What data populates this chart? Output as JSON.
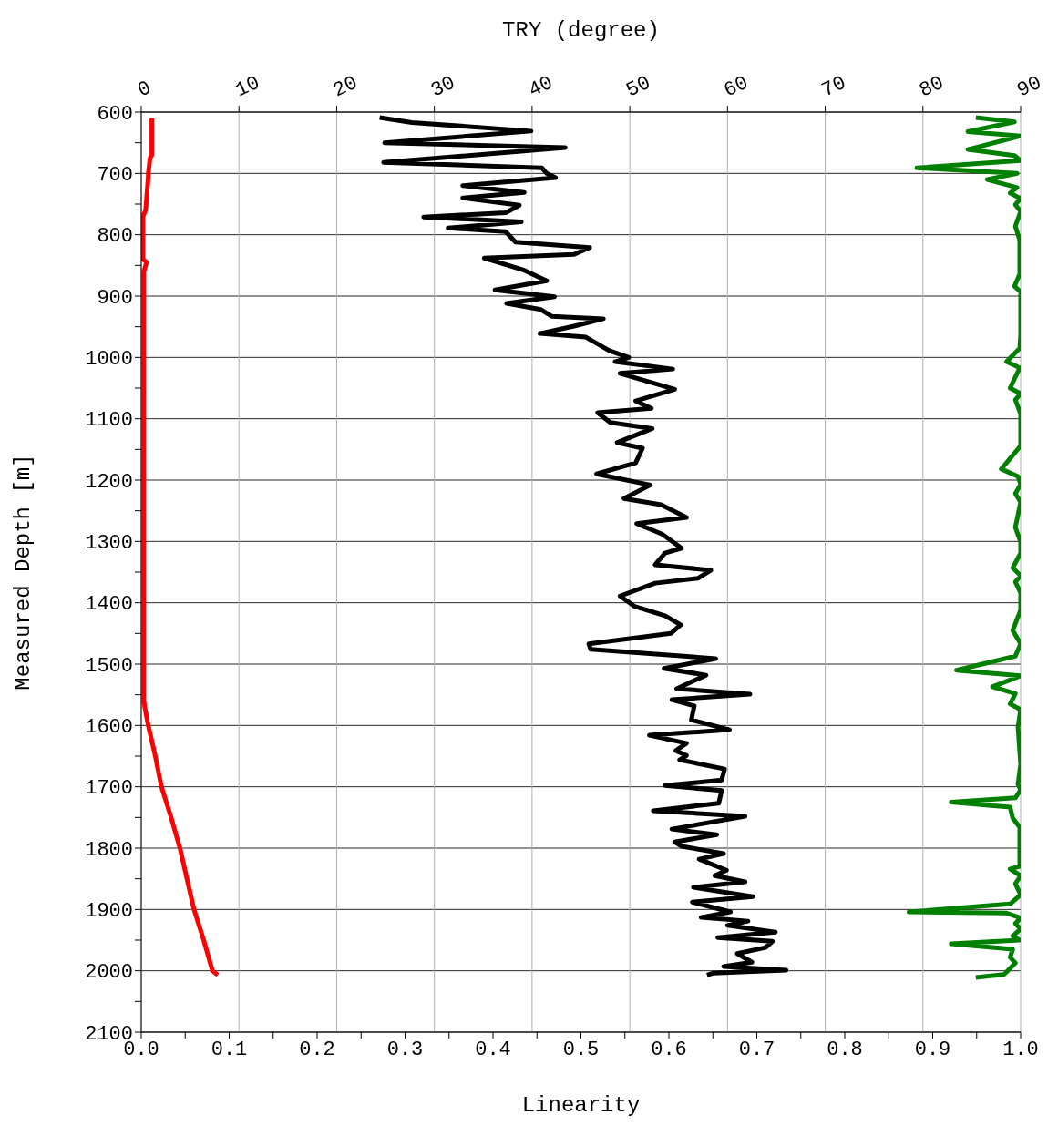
{
  "chart_data": {
    "type": "line",
    "xlabel": "Linearity",
    "x2label": "TRY (degree)",
    "ylabel": "Measured Depth [m]",
    "xlim": [
      0,
      1
    ],
    "xticks": [
      {
        "value": 0,
        "label": "0.0"
      },
      {
        "value": 0.05,
        "label": null
      },
      0.1,
      {
        "value": 0.15,
        "label": null
      },
      0.2,
      {
        "value": 0.25,
        "label": null
      },
      0.3,
      {
        "value": 0.35,
        "label": null
      },
      0.4,
      {
        "value": 0.45,
        "label": null
      },
      0.5,
      {
        "value": 0.55,
        "label": null
      },
      0.6,
      {
        "value": 0.65,
        "label": null
      },
      0.7,
      {
        "value": 0.75,
        "label": null
      },
      0.8,
      {
        "value": 0.85,
        "label": null
      },
      0.9,
      {
        "value": 0.95,
        "label": null
      },
      {
        "value": 1,
        "label": "1.0"
      }
    ],
    "x2lim": [
      0,
      90
    ],
    "x2ticks": [
      0,
      10,
      20,
      30,
      40,
      50,
      60,
      70,
      80,
      90
    ],
    "ylim": [
      2100,
      600
    ],
    "yticks": [
      600,
      {
        "value": 650,
        "label": null
      },
      700,
      {
        "value": 750,
        "label": null
      },
      800,
      {
        "value": 850,
        "label": null
      },
      900,
      {
        "value": 950,
        "label": null
      },
      1000,
      {
        "value": 1050,
        "label": null
      },
      1100,
      {
        "value": 1150,
        "label": null
      },
      1200,
      {
        "value": 1250,
        "label": null
      },
      1300,
      {
        "value": 1350,
        "label": null
      },
      1400,
      {
        "value": 1450,
        "label": null
      },
      1500,
      {
        "value": 1550,
        "label": null
      },
      1600,
      {
        "value": 1650,
        "label": null
      },
      1700,
      {
        "value": 1750,
        "label": null
      },
      1800,
      {
        "value": 1850,
        "label": null
      },
      1900,
      {
        "value": 1950,
        "label": null
      },
      2000,
      {
        "value": 2050,
        "label": null
      },
      2100
    ],
    "grid": true,
    "line_style": "solid",
    "marker": "none",
    "series": [
      {
        "color": "#ff0000",
        "x": [
          0.012,
          0.012,
          0.01,
          0.008,
          0.008,
          0.005,
          0.002,
          0.002,
          0.006,
          0.003,
          0.003,
          0.004,
          0.008,
          0.016,
          0.023,
          0.034,
          0.044,
          0.052,
          0.06,
          0.071,
          0.081,
          0.087
        ],
        "values": [
          610,
          670,
          675,
          700,
          705,
          760,
          770,
          840,
          845,
          860,
          1560,
          1570,
          1600,
          1650,
          1700,
          1750,
          1800,
          1850,
          1900,
          1950,
          2000,
          2007
        ]
      },
      {
        "color": "#000000",
        "axis": "x2",
        "x": [
          24.4,
          27.7,
          39.9,
          24.9,
          43.4,
          24.8,
          41.0,
          41.5,
          42.4,
          32.9,
          39.2,
          32.9,
          38.7,
          37.3,
          28.9,
          38.9,
          31.4,
          37.3,
          38.3,
          45.9,
          44.3,
          35.1,
          39.2,
          41.5,
          36.2,
          42.3,
          37.4,
          40.9,
          42.0,
          47.3,
          44.3,
          40.8,
          45.5,
          47.9,
          49.9,
          48.5,
          54.4,
          49.0,
          54.6,
          50.6,
          52.2,
          46.7,
          48.0,
          52.3,
          48.7,
          51.3,
          50.6,
          46.6,
          52.1,
          49.4,
          53.2,
          55.8,
          50.7,
          53.3,
          55.3,
          53.6,
          52.6,
          58.3,
          57.0,
          52.6,
          49.0,
          50.5,
          53.6,
          55.2,
          54.2,
          45.8,
          46.0,
          58.8,
          53.5,
          57.8,
          54.8,
          62.3,
          54.3,
          56.6,
          56.3,
          60.2,
          52.0,
          55.8,
          54.7,
          55.8,
          55.1,
          59.7,
          59.4,
          53.6,
          59.4,
          59.1,
          52.4,
          61.8,
          54.3,
          58.9,
          54.6,
          55.3,
          59.6,
          57.1,
          59.9,
          58.7,
          61.8,
          56.5,
          62.6,
          56.4,
          60.3,
          57.3,
          62.1,
          60.0,
          64.9,
          59.0,
          64.6,
          63.9,
          61.0,
          62.5,
          59.6,
          66.0,
          58.5,
          57.9
        ],
        "values": [
          609,
          617,
          631,
          650,
          658,
          682,
          691,
          700,
          707,
          720,
          731,
          740,
          752,
          764,
          771,
          779,
          789,
          795,
          812,
          821,
          832,
          838,
          858,
          875,
          890,
          901,
          912,
          922,
          933,
          937,
          949,
          961,
          967,
          989,
          1000,
          1007,
          1019,
          1026,
          1052,
          1071,
          1083,
          1090,
          1106,
          1116,
          1139,
          1148,
          1172,
          1190,
          1208,
          1230,
          1240,
          1261,
          1271,
          1288,
          1311,
          1319,
          1338,
          1347,
          1360,
          1368,
          1389,
          1406,
          1421,
          1436,
          1450,
          1467,
          1476,
          1491,
          1507,
          1518,
          1540,
          1549,
          1558,
          1568,
          1591,
          1607,
          1616,
          1629,
          1641,
          1649,
          1656,
          1671,
          1689,
          1698,
          1706,
          1727,
          1739,
          1748,
          1769,
          1778,
          1790,
          1797,
          1809,
          1818,
          1836,
          1845,
          1855,
          1864,
          1879,
          1888,
          1904,
          1913,
          1919,
          1926,
          1937,
          1946,
          1952,
          1962,
          1972,
          1986,
          1993,
          1999,
          2004,
          2007
        ]
      },
      {
        "color": "#008000",
        "x": [
          0.949,
          0.993,
          0.94,
          1.0,
          0.94,
          0.993,
          1.0,
          0.882,
          0.996,
          0.962,
          0.996,
          0.988,
          1.0,
          0.994,
          1.0,
          0.994,
          0.999,
          0.999,
          0.993,
          1.0,
          1.0,
          0.999,
          0.984,
          0.999,
          0.988,
          1.0,
          0.994,
          1.0,
          1.0,
          1.0,
          0.978,
          0.997,
          1.0,
          0.994,
          1.0,
          0.994,
          1.0,
          1.0,
          0.991,
          1.0,
          0.994,
          1.0,
          1.0,
          0.991,
          1.0,
          0.994,
          0.927,
          1.0,
          0.968,
          0.994,
          0.988,
          1.0,
          0.997,
          1.0,
          0.997,
          1.0,
          0.994,
          0.921,
          0.988,
          0.991,
          0.999,
          0.999,
          0.988,
          1.0,
          0.994,
          1.0,
          0.988,
          0.873,
          0.984,
          1.0,
          0.994,
          1.0,
          0.991,
          0.999,
          0.921,
          0.991,
          0.988,
          0.994,
          0.984,
          0.981,
          0.949
        ],
        "values": [
          609,
          616,
          632,
          639,
          661,
          671,
          679,
          691,
          700,
          710,
          723,
          732,
          741,
          751,
          762,
          786,
          809,
          864,
          884,
          893,
          962,
          985,
          1007,
          1017,
          1050,
          1059,
          1069,
          1092,
          1115,
          1144,
          1182,
          1194,
          1207,
          1222,
          1236,
          1277,
          1301,
          1319,
          1343,
          1356,
          1366,
          1384,
          1412,
          1445,
          1467,
          1487,
          1510,
          1519,
          1537,
          1548,
          1565,
          1574,
          1603,
          1663,
          1696,
          1705,
          1718,
          1725,
          1733,
          1751,
          1766,
          1830,
          1834,
          1845,
          1858,
          1876,
          1891,
          1904,
          1906,
          1914,
          1923,
          1932,
          1943,
          1950,
          1956,
          1965,
          1978,
          1987,
          2002,
          2006,
          2011
        ]
      }
    ]
  }
}
